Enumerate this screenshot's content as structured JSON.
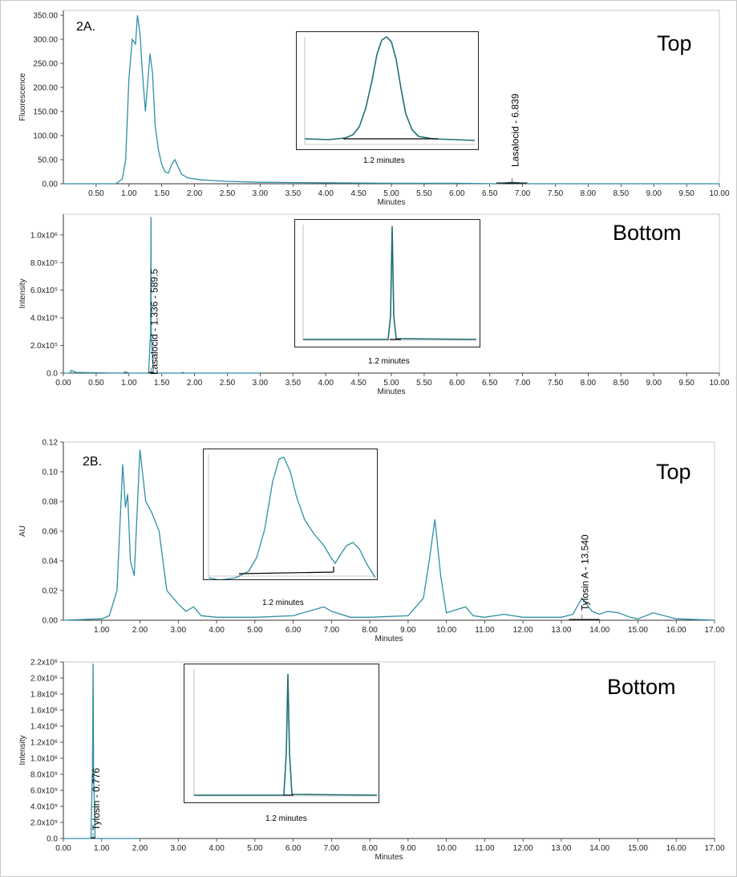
{
  "panels": {
    "p2a": {
      "label": "2A.",
      "position": "Top",
      "inset_caption": "1.2 minutes",
      "annotation": "Lasalocid - 6.839"
    },
    "p2a_bottom": {
      "position": "Bottom",
      "inset_caption": "1.2 minutes",
      "annotation": "Lasalocid - 1.336 - 589.5"
    },
    "p2b": {
      "label": "2B.",
      "position": "Top",
      "inset_caption": "1.2 minutes",
      "annotation": "Tylosin A - 13.540"
    },
    "p2b_bottom": {
      "position": "Bottom",
      "inset_caption": "1.2 minutes",
      "annotation": "Tylosin - 0.776"
    }
  },
  "colors": {
    "trace": "#2e8fa6",
    "dark_trace": "#1f6f72",
    "axis": "#333333"
  },
  "chart_data": [
    {
      "type": "line",
      "id": "2A-top",
      "xlabel": "Minutes",
      "ylabel": "Fluorescence",
      "xlim": [
        0,
        10
      ],
      "ylim": [
        0,
        360
      ],
      "x_ticks": [
        "0.50",
        "1.00",
        "1.50",
        "2.00",
        "2.50",
        "3.00",
        "3.50",
        "4.00",
        "4.50",
        "5.00",
        "5.50",
        "6.00",
        "6.50",
        "7.00",
        "7.50",
        "8.00",
        "8.50",
        "9.00",
        "9.50",
        "10.00"
      ],
      "y_ticks": [
        "0.00",
        "50.00",
        "100.00",
        "150.00",
        "200.00",
        "250.00",
        "300.00",
        "350.00"
      ],
      "series": [
        {
          "name": "Fluorescence",
          "x": [
            0,
            0.8,
            0.9,
            0.95,
            1.0,
            1.05,
            1.1,
            1.13,
            1.17,
            1.2,
            1.25,
            1.28,
            1.32,
            1.36,
            1.4,
            1.45,
            1.5,
            1.55,
            1.6,
            1.65,
            1.7,
            1.75,
            1.8,
            1.9,
            2.1,
            2.5,
            3.0,
            4.0,
            5.0,
            6.0,
            6.6,
            6.84,
            7.1,
            8.0,
            9.0,
            10.0
          ],
          "y": [
            0,
            0,
            10,
            50,
            220,
            300,
            290,
            350,
            310,
            240,
            150,
            200,
            270,
            230,
            120,
            70,
            40,
            25,
            22,
            40,
            50,
            35,
            20,
            12,
            8,
            5,
            3,
            2,
            1,
            1,
            0,
            3,
            0,
            0,
            0,
            0
          ]
        }
      ],
      "annotation": {
        "label": "Lasalocid - 6.839",
        "x": 6.839
      }
    },
    {
      "type": "line",
      "id": "2A-bottom",
      "xlabel": "Minutes",
      "ylabel": "Intensity",
      "xlim": [
        0,
        10
      ],
      "ylim": [
        0,
        1150000
      ],
      "x_ticks": [
        "0.00",
        "0.50",
        "1.00",
        "1.50",
        "2.00",
        "2.50",
        "3.00",
        "3.50",
        "4.00",
        "4.50",
        "5.00",
        "5.50",
        "6.00",
        "6.50",
        "7.00",
        "7.50",
        "8.00",
        "8.50",
        "9.00",
        "9.50",
        "10.00"
      ],
      "y_ticks": [
        "0.0",
        "2.0x10⁵",
        "4.0x10⁵",
        "6.0x10⁵",
        "8.0x10⁵",
        "1.0x10⁶"
      ],
      "series": [
        {
          "name": "Intensity",
          "x": [
            0,
            0.1,
            0.12,
            0.2,
            0.9,
            0.95,
            1.0,
            1.3,
            1.33,
            1.336,
            1.34,
            1.37,
            1.8,
            1.82,
            1.85,
            3.0
          ],
          "y": [
            0,
            0,
            20000,
            5000,
            0,
            8000,
            0,
            0,
            300000,
            1130000,
            300000,
            0,
            0,
            6000,
            0,
            0
          ]
        }
      ],
      "annotation": {
        "label": "Lasalocid - 1.336 - 589.5",
        "x": 1.336
      }
    },
    {
      "type": "line",
      "id": "2B-top",
      "xlabel": "Minutes",
      "ylabel": "AU",
      "xlim": [
        0,
        17
      ],
      "ylim": [
        0,
        0.12
      ],
      "x_ticks": [
        "1.00",
        "2.00",
        "3.00",
        "4.00",
        "5.00",
        "6.00",
        "7.00",
        "8.00",
        "9.00",
        "10.00",
        "11.00",
        "12.00",
        "13.00",
        "14.00",
        "15.00",
        "16.00",
        "17.00"
      ],
      "y_ticks": [
        "0.00",
        "0.02",
        "0.04",
        "0.06",
        "0.08",
        "0.10",
        "0.12"
      ],
      "series": [
        {
          "name": "AU",
          "x": [
            0,
            1.0,
            1.2,
            1.4,
            1.55,
            1.62,
            1.68,
            1.75,
            1.85,
            2.0,
            2.15,
            2.3,
            2.5,
            2.7,
            3.0,
            3.2,
            3.4,
            3.6,
            4.0,
            5.0,
            6.0,
            6.8,
            7.0,
            7.5,
            8.0,
            9.0,
            9.4,
            9.55,
            9.7,
            9.85,
            10.0,
            10.5,
            10.7,
            11.0,
            11.5,
            12.0,
            13.0,
            13.3,
            13.54,
            13.8,
            14.0,
            14.2,
            14.5,
            14.8,
            15.0,
            15.4,
            16.0,
            17.0
          ],
          "y": [
            0,
            0.001,
            0.003,
            0.02,
            0.105,
            0.076,
            0.085,
            0.04,
            0.03,
            0.115,
            0.08,
            0.073,
            0.06,
            0.02,
            0.011,
            0.006,
            0.009,
            0.003,
            0.002,
            0.002,
            0.003,
            0.009,
            0.006,
            0.002,
            0.002,
            0.003,
            0.015,
            0.04,
            0.068,
            0.03,
            0.005,
            0.009,
            0.003,
            0.002,
            0.004,
            0.002,
            0.002,
            0.004,
            0.015,
            0.006,
            0.004,
            0.006,
            0.005,
            0.002,
            0.001,
            0.005,
            0.001,
            0.0
          ]
        }
      ],
      "annotation": {
        "label": "Tylosin A - 13.540",
        "x": 13.54
      }
    },
    {
      "type": "line",
      "id": "2B-bottom",
      "xlabel": "Minutes",
      "ylabel": "Intensity",
      "xlim": [
        0,
        17
      ],
      "ylim": [
        0,
        2200000
      ],
      "x_ticks": [
        "0.00",
        "1.00",
        "2.00",
        "3.00",
        "4.00",
        "5.00",
        "6.00",
        "7.00",
        "8.00",
        "9.00",
        "10.00",
        "11.00",
        "12.00",
        "13.00",
        "14.00",
        "15.00",
        "16.00",
        "17.00"
      ],
      "y_ticks": [
        "0.0",
        "2.0x10⁵",
        "4.0x10⁵",
        "6.0x10⁵",
        "8.0x10⁵",
        "1.0x10⁶",
        "1.2x10⁶",
        "1.4x10⁶",
        "1.6x10⁶",
        "1.8x10⁶",
        "2.0x10⁶",
        "2.2x10⁶"
      ],
      "series": [
        {
          "name": "Intensity",
          "x": [
            0,
            0.72,
            0.76,
            0.776,
            0.79,
            0.83,
            2.0
          ],
          "y": [
            0,
            0,
            900000,
            2180000,
            900000,
            0,
            0
          ]
        }
      ],
      "annotation": {
        "label": "Tylosin - 0.776",
        "x": 0.776
      }
    }
  ]
}
